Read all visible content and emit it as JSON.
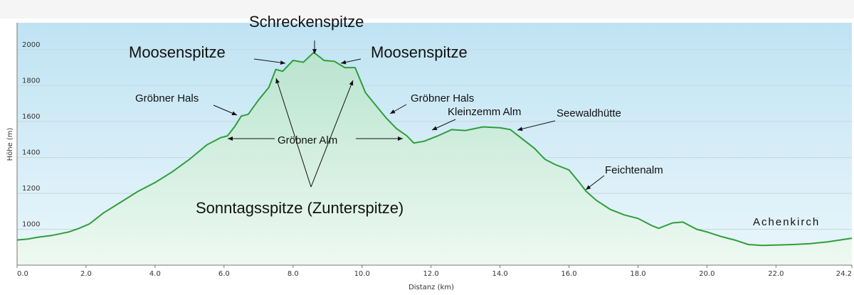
{
  "chart_data": {
    "type": "area",
    "title": "",
    "xlabel": "Distanz  (km)",
    "ylabel": "Höhe (m)",
    "xlim": [
      0,
      24.2
    ],
    "ylim": [
      800,
      2150
    ],
    "x_ticks": [
      "0.0",
      "2.0",
      "4.0",
      "6.0",
      "8.0",
      "10.0",
      "12.0",
      "14.0",
      "16.0",
      "18.0",
      "20.0",
      "22.0",
      "24.2"
    ],
    "y_ticks": [
      "1000",
      "1200",
      "1400",
      "1600",
      "1800",
      "2000"
    ],
    "grid": true,
    "legend": "none",
    "colors": {
      "line": "#2e9e3a",
      "fill_top": "#b9e4cf",
      "fill_bottom": "#e8f7ee",
      "bg_top": "#bfe3f3",
      "bg_bottom": "#eaf6fb"
    },
    "series": [
      {
        "x": [
          0,
          0.3,
          0.6,
          1.0,
          1.5,
          1.8,
          2.1,
          2.5,
          3.0,
          3.5,
          4.0,
          4.5,
          5.0,
          5.5,
          5.9,
          6.1,
          6.3,
          6.5,
          6.7,
          7.0,
          7.3,
          7.5,
          7.7,
          8.0,
          8.3,
          8.6,
          8.9,
          9.2,
          9.5,
          9.8,
          10.1,
          10.4,
          10.7,
          11.0,
          11.3,
          11.5,
          11.8,
          12.2,
          12.6,
          13.0,
          13.5,
          14.0,
          14.3,
          14.6,
          15.0,
          15.3,
          15.6,
          16.0,
          16.3,
          16.5,
          16.8,
          17.2,
          17.6,
          18.0,
          18.4,
          18.6,
          19.0,
          19.3,
          19.7,
          20.0,
          20.4,
          20.8,
          21.2,
          21.6,
          22.0,
          22.5,
          23.0,
          23.5,
          24.2
        ],
        "y": [
          940,
          945,
          955,
          965,
          985,
          1005,
          1030,
          1090,
          1150,
          1210,
          1260,
          1320,
          1390,
          1470,
          1510,
          1520,
          1570,
          1630,
          1640,
          1720,
          1790,
          1890,
          1880,
          1940,
          1930,
          1985,
          1940,
          1935,
          1900,
          1900,
          1760,
          1690,
          1620,
          1560,
          1520,
          1480,
          1490,
          1520,
          1555,
          1550,
          1570,
          1565,
          1555,
          1510,
          1450,
          1390,
          1360,
          1330,
          1260,
          1210,
          1160,
          1110,
          1080,
          1060,
          1020,
          1005,
          1035,
          1040,
          1000,
          985,
          960,
          940,
          915,
          910,
          912,
          915,
          920,
          930,
          950
        ]
      }
    ],
    "annotations": [
      {
        "text": "Schreckenspitze",
        "size": 22
      },
      {
        "text": "Moosenspitze",
        "size": 22
      },
      {
        "text": "Moosenspitze",
        "size": 22
      },
      {
        "text": "Gröbner Hals",
        "size": 15
      },
      {
        "text": "Gröbner Hals",
        "size": 15
      },
      {
        "text": "Kleinzemm Alm",
        "size": 15
      },
      {
        "text": "Seewaldhütte",
        "size": 15
      },
      {
        "text": "Gröbner Alm",
        "size": 15
      },
      {
        "text": "Feichtenalm",
        "size": 15
      },
      {
        "text": "Sonntagsspitze (Zunterspitze)",
        "size": 22
      },
      {
        "text": "Achenkirch",
        "size": 15
      }
    ]
  }
}
